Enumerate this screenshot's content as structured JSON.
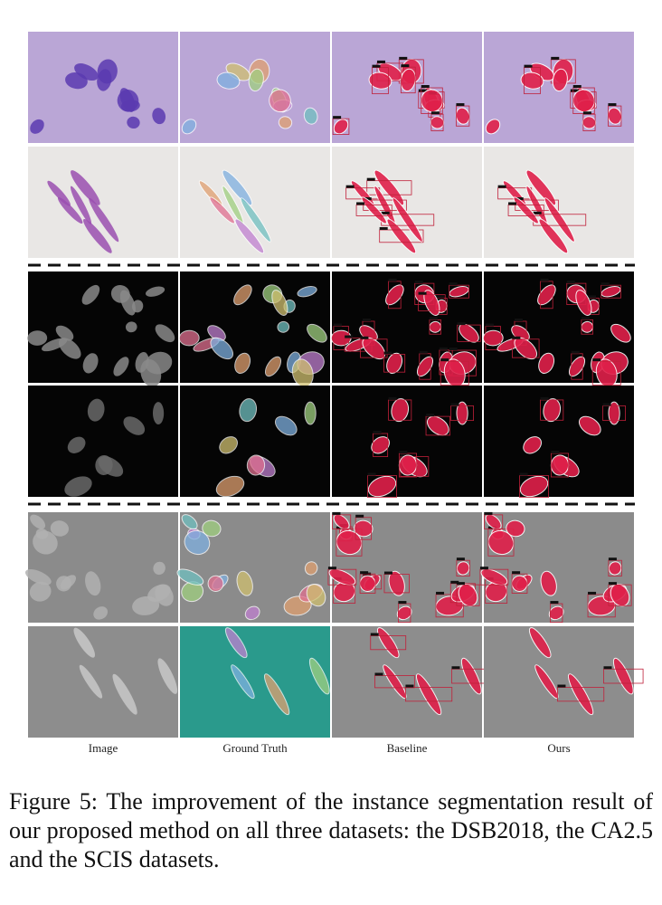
{
  "figure": {
    "column_labels": [
      "Image",
      "Ground Truth",
      "Baseline",
      "Ours"
    ],
    "caption": "Figure 5: The improvement of the instance segmentation result of our proposed method on all three datasets: the DSB2018, the CA2.5 and the SCIS datasets."
  }
}
